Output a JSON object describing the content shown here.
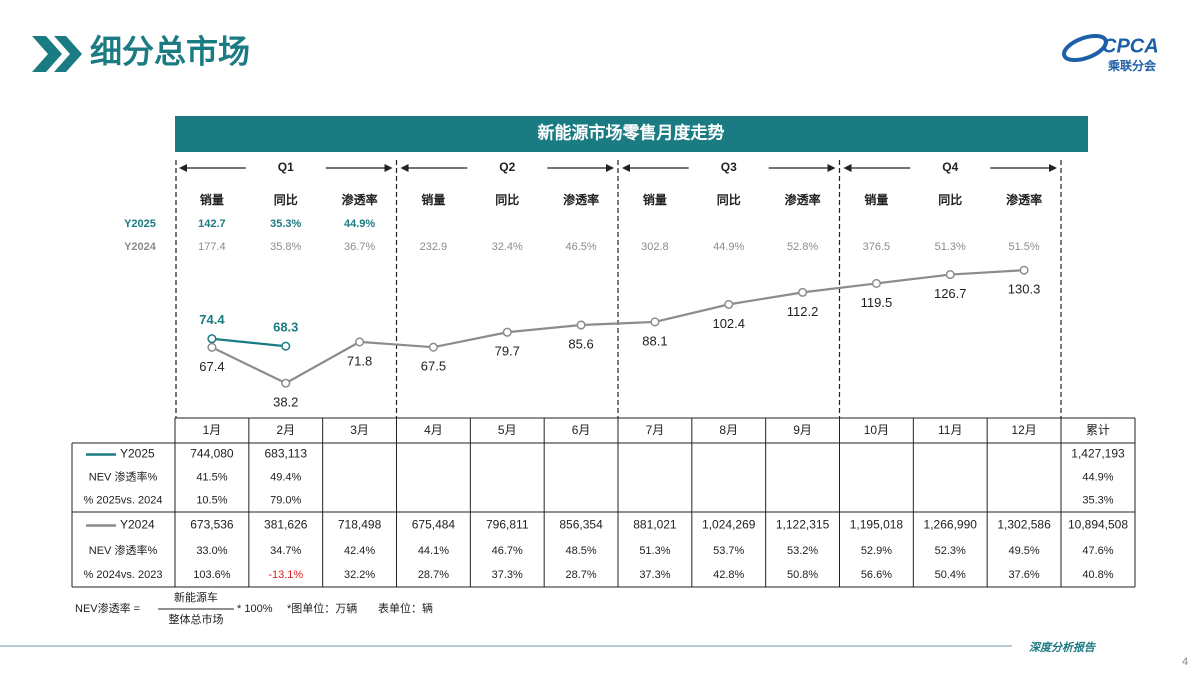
{
  "header": {
    "title": "细分总市场",
    "logo": "CPCA",
    "logo_sub": "乘联分会"
  },
  "chart_data": {
    "type": "line",
    "title": "新能源市场零售月度走势",
    "categories": [
      "1月",
      "2月",
      "3月",
      "4月",
      "5月",
      "6月",
      "7月",
      "8月",
      "9月",
      "10月",
      "11月",
      "12月"
    ],
    "series": [
      {
        "name": "Y2025",
        "color": "#1b7b82",
        "values": [
          74.4,
          68.3,
          null,
          null,
          null,
          null,
          null,
          null,
          null,
          null,
          null,
          null
        ]
      },
      {
        "name": "Y2024",
        "color": "#8c8c8c",
        "values": [
          67.4,
          38.2,
          71.8,
          67.5,
          79.7,
          85.6,
          88.1,
          102.4,
          112.2,
          119.5,
          126.7,
          130.3
        ]
      }
    ],
    "ylim": [
      0,
      150
    ]
  },
  "quarter_summary": {
    "quarters": [
      "Q1",
      "Q2",
      "Q3",
      "Q4"
    ],
    "headers": [
      "销量",
      "同比",
      "渗透率"
    ],
    "rows": [
      [
        "142.7",
        "35.3%",
        "44.9%"
      ],
      [
        "177.4",
        "35.8%",
        "36.7%",
        "232.9",
        "32.4%",
        "46.5%",
        "302.8",
        "44.9%",
        "52.8%",
        "376.5",
        "51.3%",
        "51.5%"
      ]
    ]
  },
  "table": {
    "total_header": "累计",
    "rows": [
      {
        "label": "Y2025",
        "cells": [
          "744,080",
          "683,113"
        ],
        "total": "1,427,193"
      },
      {
        "label": "NEV 渗透率%",
        "cells": [
          "41.5%",
          "49.4%"
        ],
        "total": "44.9%"
      },
      {
        "label": "% 2025vs. 2024",
        "cells": [
          "10.5%",
          "79.0%"
        ],
        "total": "35.3%"
      },
      {
        "label": "Y2024",
        "cells": [
          "673,536",
          "381,626",
          "718,498",
          "675,484",
          "796,811",
          "856,354",
          "881,021",
          "1,024,269",
          "1,122,315",
          "1,195,018",
          "1,266,990",
          "1,302,586"
        ],
        "total": "10,894,508"
      },
      {
        "label": "NEV 渗透率%",
        "cells": [
          "33.0%",
          "34.7%",
          "42.4%",
          "44.1%",
          "46.7%",
          "48.5%",
          "51.3%",
          "53.7%",
          "53.2%",
          "52.9%",
          "52.3%",
          "49.5%"
        ],
        "total": "47.6%"
      },
      {
        "label": "% 2024vs. 2023",
        "cells": [
          "103.6%",
          "-13.1%",
          "32.2%",
          "28.7%",
          "37.3%",
          "28.7%",
          "37.3%",
          "42.8%",
          "50.8%",
          "56.6%",
          "50.4%",
          "37.6%"
        ],
        "total": "40.8%"
      }
    ]
  },
  "footnote": {
    "formula_label": "NEV渗透率 =",
    "numerator": "新能源车",
    "denominator": "整体总市场",
    "multiplier": "* 100%",
    "chart_unit": "*图单位：万辆",
    "table_unit": "表单位：辆"
  },
  "footer": {
    "report": "深度分析报告",
    "page": "4"
  }
}
